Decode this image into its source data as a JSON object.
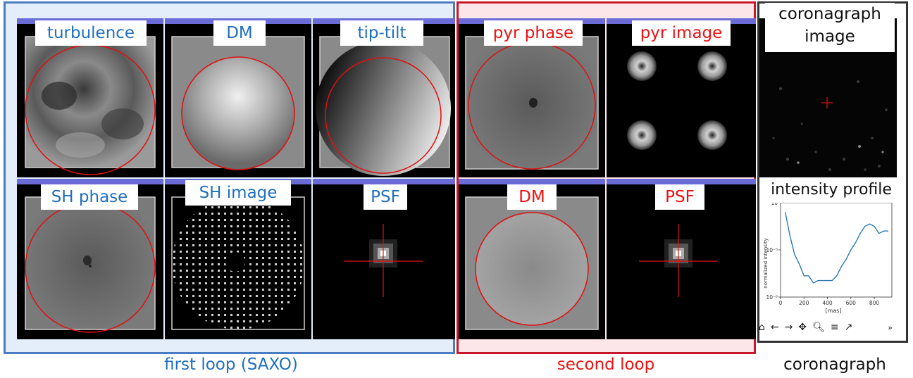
{
  "first_loop": {
    "caption": "first loop (SAXO)",
    "tiles": [
      {
        "label": "turbulence"
      },
      {
        "label": "DM"
      },
      {
        "label": "tip-tilt"
      },
      {
        "label": "SH phase"
      },
      {
        "label": "SH image"
      },
      {
        "label": "PSF"
      }
    ]
  },
  "second_loop": {
    "caption": "second loop",
    "tiles": [
      {
        "label": "pyr phase"
      },
      {
        "label": "pyr image"
      },
      {
        "label": "DM"
      },
      {
        "label": "PSF"
      }
    ]
  },
  "coronagraph": {
    "caption": "coronagraph",
    "image_label_line1": "coronagraph",
    "image_label_line2": "image",
    "profile_label": "intensity profile"
  },
  "chart_data": {
    "type": "line",
    "xlabel": "[mas]",
    "ylabel": "normalized intensity",
    "xticks": [
      "0",
      "200",
      "400",
      "600",
      "800"
    ],
    "yticks": [
      "10⁻⁶",
      "10⁻⁵"
    ],
    "top_tick": "10",
    "ylim_log10": [
      -6,
      -4
    ],
    "xlim": [
      0,
      950
    ],
    "x": [
      40,
      80,
      120,
      160,
      200,
      240,
      280,
      320,
      360,
      400,
      440,
      480,
      520,
      560,
      600,
      640,
      680,
      720,
      760,
      800,
      840,
      880,
      920
    ],
    "y_log10": [
      -4.2,
      -4.7,
      -5.1,
      -5.3,
      -5.55,
      -5.55,
      -5.7,
      -5.65,
      -5.65,
      -5.65,
      -5.65,
      -5.55,
      -5.35,
      -5.2,
      -5.0,
      -4.85,
      -4.65,
      -4.5,
      -4.45,
      -4.5,
      -4.65,
      -4.6,
      -4.6
    ]
  },
  "toolbar": {
    "home": "home-icon",
    "back": "arrow-left-icon",
    "forward": "arrow-right-icon",
    "pan": "pan-icon",
    "zoom": "zoom-icon",
    "configure": "sliders-icon",
    "edit": "chart-edit-icon",
    "more": "»"
  },
  "colors": {
    "first_loop_border": "#4a7cc4",
    "first_loop_bg": "#e3eefa",
    "second_loop_border": "#c8182c",
    "second_loop_bg": "#fde6ea",
    "coronagraph_border": "#333333",
    "tile_topbar": "#6b6bd8",
    "pupil_circle": "#e01010"
  }
}
